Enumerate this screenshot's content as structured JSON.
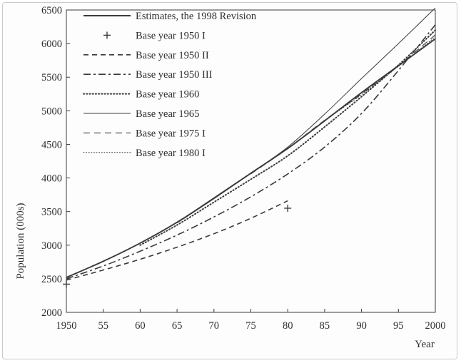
{
  "chart_data": {
    "type": "line",
    "title": "",
    "xlabel": "Year",
    "ylabel": "Population (000s)",
    "xlim": [
      1950,
      2000
    ],
    "ylim": [
      2000,
      6500
    ],
    "x_ticks": [
      1950,
      1955,
      1960,
      1965,
      1970,
      1975,
      1980,
      1985,
      1990,
      1995,
      2000
    ],
    "x_tick_labels": [
      "1950",
      "55",
      "60",
      "65",
      "70",
      "75",
      "80",
      "85",
      "90",
      "95",
      "2000"
    ],
    "y_ticks": [
      2000,
      2500,
      3000,
      3500,
      4000,
      4500,
      5000,
      5500,
      6000,
      6500
    ],
    "y_tick_labels": [
      "2000",
      "2500",
      "3000",
      "3500",
      "4000",
      "4500",
      "5000",
      "5500",
      "6000",
      "6500"
    ],
    "grid": false,
    "legend_position": "top-left",
    "series": [
      {
        "name": "Estimates, the 1998 Revision",
        "style": "solid-thick",
        "x": [
          1950,
          1955,
          1960,
          1965,
          1970,
          1975,
          1980,
          1985,
          1990,
          1995,
          2000
        ],
        "y": [
          2520,
          2760,
          3030,
          3340,
          3700,
          4070,
          4440,
          4850,
          5270,
          5670,
          6070
        ]
      },
      {
        "name": "Base year 1950 I",
        "style": "plus-markers",
        "x": [
          1950,
          1980
        ],
        "y": [
          2420,
          3550
        ]
      },
      {
        "name": "Base year 1950 II",
        "style": "dashed",
        "x": [
          1950,
          1955,
          1960,
          1965,
          1970,
          1975,
          1980
        ],
        "y": [
          2480,
          2630,
          2790,
          2970,
          3170,
          3400,
          3660
        ]
      },
      {
        "name": "Base year 1950 III",
        "style": "dash-dot",
        "x": [
          1950,
          1955,
          1960,
          1965,
          1970,
          1975,
          1980,
          1985,
          1990,
          1995,
          2000
        ],
        "y": [
          2500,
          2690,
          2910,
          3150,
          3420,
          3720,
          4060,
          4460,
          4960,
          5600,
          6280
        ]
      },
      {
        "name": "Base year 1960",
        "style": "dotted-heavy",
        "x": [
          1960,
          1965,
          1970,
          1975,
          1980,
          1985,
          1990,
          1995,
          2000
        ],
        "y": [
          3000,
          3300,
          3640,
          3980,
          4330,
          4760,
          5210,
          5680,
          6200
        ]
      },
      {
        "name": "Base year 1965",
        "style": "solid-thin",
        "x": [
          1965,
          1970,
          1975,
          1980,
          1985,
          1990,
          1995,
          2000
        ],
        "y": [
          3330,
          3690,
          4070,
          4460,
          4950,
          5480,
          6000,
          6530
        ]
      },
      {
        "name": "Base year 1975 I",
        "style": "dashed-long",
        "x": [
          1975,
          1980,
          1985,
          1990,
          1995,
          2000
        ],
        "y": [
          4060,
          4440,
          4860,
          5250,
          5670,
          6130
        ]
      },
      {
        "name": "Base year 1980 I",
        "style": "dotted-light",
        "x": [
          1980,
          1985,
          1990,
          1995,
          2000
        ],
        "y": [
          4430,
          4850,
          5240,
          5660,
          6100
        ]
      }
    ]
  }
}
